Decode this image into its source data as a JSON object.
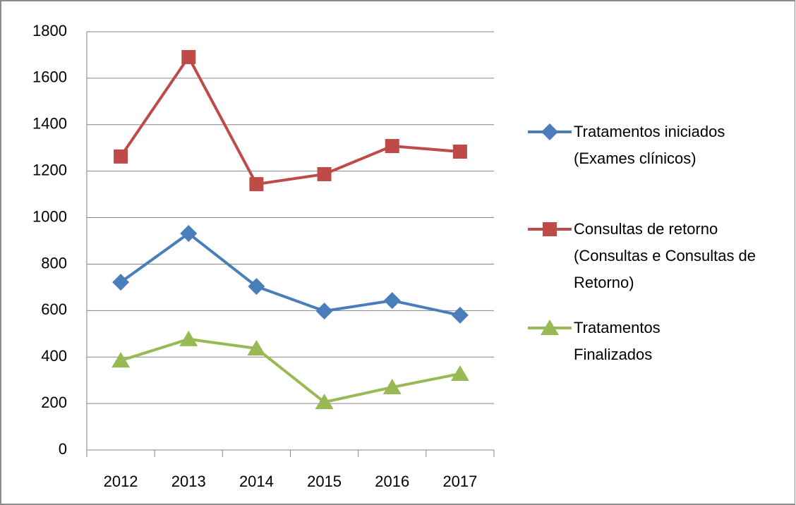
{
  "chart_data": {
    "type": "line",
    "categories": [
      "2012",
      "2013",
      "2014",
      "2015",
      "2016",
      "2017"
    ],
    "series": [
      {
        "name": "Tratamentos iniciados (Exames clínicos)",
        "color": "#4a7ebb",
        "marker": "diamond",
        "values": [
          722,
          932,
          704,
          598,
          643,
          580
        ]
      },
      {
        "name": "Consultas de retorno (Consultas e Consultas de Retorno)",
        "color": "#be4b48",
        "marker": "square",
        "values": [
          1263,
          1691,
          1144,
          1187,
          1308,
          1284
        ]
      },
      {
        "name": "Tratamentos Finalizados",
        "color": "#98b954",
        "marker": "triangle",
        "values": [
          385,
          477,
          437,
          206,
          270,
          328
        ]
      }
    ],
    "ylim": [
      0,
      1800
    ],
    "yticks": [
      0,
      200,
      400,
      600,
      800,
      1000,
      1200,
      1400,
      1600,
      1800
    ],
    "grid": true,
    "legend": "right"
  }
}
